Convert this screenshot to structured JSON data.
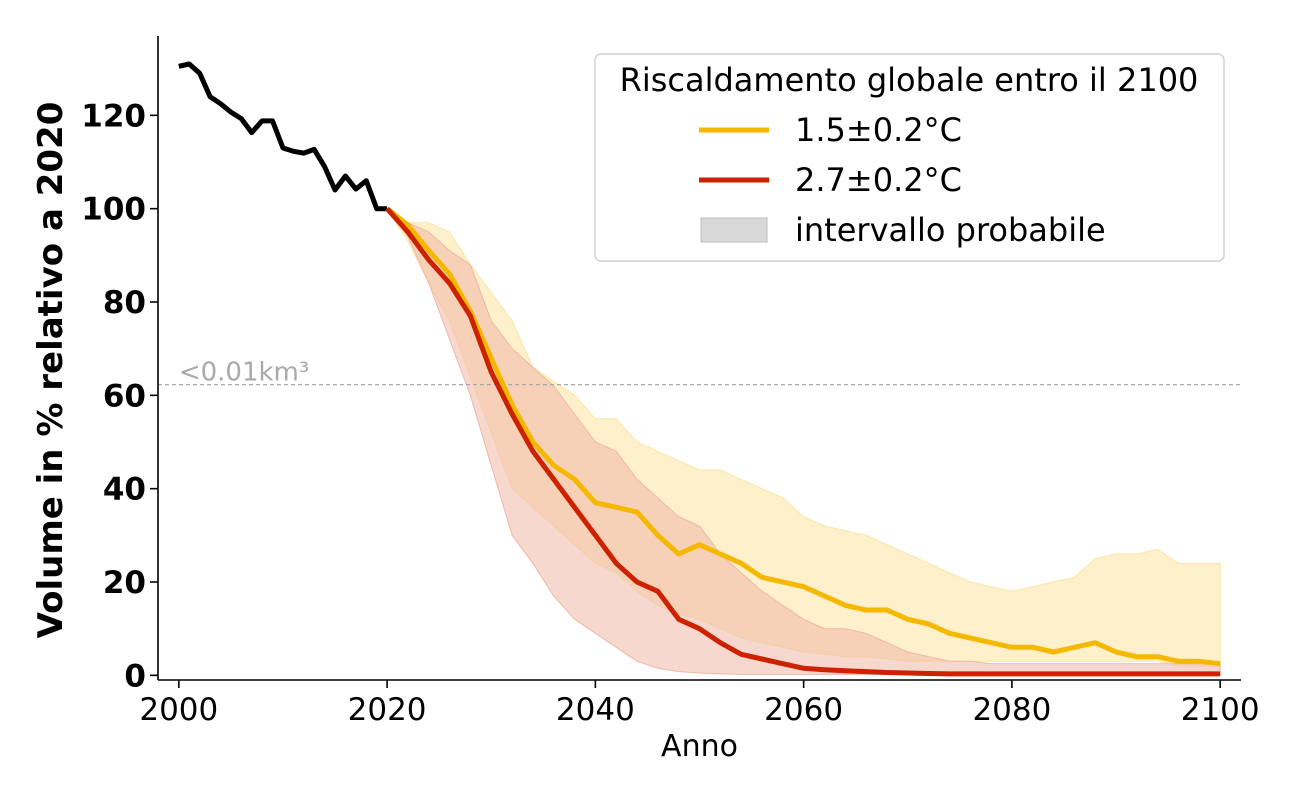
{
  "chart_data": {
    "type": "line",
    "xlabel": "Anno",
    "ylabel": "Volume in % relativo a 2020",
    "xlim": [
      1998,
      2102
    ],
    "ylim": [
      -1,
      137
    ],
    "x_ticks": [
      "2000",
      "2020",
      "2040",
      "2060",
      "2080",
      "2100"
    ],
    "y_ticks": [
      "0",
      "20",
      "40",
      "60",
      "80",
      "100",
      "120"
    ],
    "grid": false,
    "legend_placement": "top-right",
    "legend": {
      "title": "Riscaldamento globale entro il 2100",
      "entries": [
        {
          "label": "1.5±0.2°C",
          "color": "#f5b800",
          "kind": "line"
        },
        {
          "label": "2.7±0.2°C",
          "color": "#cc2200",
          "kind": "line"
        },
        {
          "label": "intervallo probabile",
          "color": "#d9d9d9",
          "kind": "band"
        }
      ]
    },
    "threshold": {
      "y": 62.3,
      "label": "<0.01km³",
      "color": "#aaaaaa"
    },
    "observed": {
      "color": "#000000",
      "x": [
        2000,
        2001,
        2002,
        2003,
        2004,
        2005,
        2006,
        2007,
        2008,
        2009,
        2010,
        2011,
        2012,
        2013,
        2014,
        2015,
        2016,
        2017,
        2018,
        2019,
        2020
      ],
      "y": [
        130.5,
        131,
        129,
        124,
        122.5,
        120.7,
        119.3,
        116.3,
        118.8,
        118.8,
        113,
        112.3,
        111.9,
        112.7,
        109,
        104,
        107,
        104.2,
        106,
        100,
        100
      ]
    },
    "series": [
      {
        "name": "1.5±0.2°C",
        "color": "#f5b800",
        "band_color": "#fce6a6",
        "x": [
          2020,
          2022,
          2024,
          2026,
          2028,
          2030,
          2032,
          2034,
          2036,
          2038,
          2040,
          2042,
          2044,
          2046,
          2048,
          2050,
          2052,
          2054,
          2056,
          2058,
          2060,
          2062,
          2064,
          2066,
          2068,
          2070,
          2072,
          2074,
          2076,
          2078,
          2080,
          2082,
          2084,
          2086,
          2088,
          2090,
          2092,
          2094,
          2096,
          2098,
          2100
        ],
        "y": [
          100,
          96.5,
          91,
          86,
          78,
          68,
          58,
          50,
          45,
          42,
          37,
          36,
          35,
          30,
          26,
          28,
          26,
          24,
          21,
          20,
          19,
          17,
          15,
          14,
          14,
          12,
          11,
          9,
          8,
          7,
          6,
          6,
          5,
          6,
          7,
          5,
          4,
          4,
          3,
          3,
          2.5
        ],
        "upper": [
          100,
          97,
          97,
          95,
          88,
          82,
          76,
          66,
          63,
          60,
          55,
          55,
          50,
          48,
          46,
          44,
          44,
          42,
          40,
          38,
          34,
          32,
          31,
          30,
          28,
          26,
          24,
          22,
          20,
          19,
          18,
          19,
          20,
          21,
          25,
          26,
          26,
          27,
          24,
          24,
          24
        ],
        "lower": [
          100,
          93,
          84,
          76,
          64,
          52,
          40,
          36,
          32,
          28,
          24,
          22,
          18,
          15,
          13,
          12,
          10,
          8,
          7,
          6,
          5,
          4.5,
          4,
          4,
          3.5,
          3,
          3,
          3,
          3,
          3,
          3,
          3,
          3,
          3,
          3,
          3,
          3,
          3,
          2,
          2,
          2
        ]
      },
      {
        "name": "2.7±0.2°C",
        "color": "#cc2200",
        "band_color": "#f0b8a8",
        "x": [
          2020,
          2022,
          2024,
          2026,
          2028,
          2030,
          2032,
          2034,
          2036,
          2038,
          2040,
          2042,
          2044,
          2046,
          2048,
          2050,
          2052,
          2054,
          2056,
          2058,
          2060,
          2062,
          2064,
          2066,
          2068,
          2070,
          2072,
          2074,
          2076,
          2078,
          2080,
          2082,
          2084,
          2086,
          2088,
          2090,
          2092,
          2094,
          2096,
          2098,
          2100
        ],
        "y": [
          100,
          95,
          89,
          84,
          77,
          65,
          56,
          48,
          42,
          36,
          30,
          24,
          20,
          18,
          12,
          10,
          7,
          4.5,
          3.5,
          2.5,
          1.5,
          1.2,
          1,
          0.8,
          0.6,
          0.5,
          0.4,
          0.3,
          0.3,
          0.3,
          0.3,
          0.3,
          0.3,
          0.3,
          0.3,
          0.3,
          0.3,
          0.3,
          0.3,
          0.3,
          0.3
        ],
        "upper": [
          100,
          97,
          95,
          91,
          88,
          76,
          70,
          66,
          62,
          56,
          50,
          48,
          42,
          38,
          34,
          32,
          26,
          22,
          18,
          15,
          12,
          10,
          10,
          9,
          7,
          5,
          4,
          3,
          3,
          2.5,
          2.5,
          2.5,
          2.5,
          2.5,
          2.5,
          2.5,
          2.5,
          2.5,
          2.5,
          2.5,
          2.5
        ],
        "lower": [
          100,
          94,
          84,
          72,
          60,
          45,
          30,
          24,
          17,
          12,
          9,
          6,
          3,
          1.5,
          0.8,
          0.5,
          0.3,
          0.2,
          0.2,
          0.2,
          0.2,
          0.2,
          0.2,
          0.2,
          0.2,
          0.2,
          0.2,
          0.2,
          0.2,
          0.2,
          0.2,
          0.2,
          0.2,
          0.2,
          0.2,
          0.2,
          0.2,
          0.2,
          0.2,
          0.2,
          0.2
        ]
      }
    ]
  }
}
